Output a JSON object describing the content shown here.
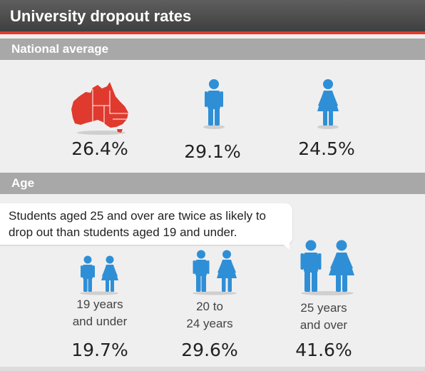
{
  "header": {
    "title": "University dropout rates"
  },
  "sections": {
    "national": {
      "title": "National average",
      "items": [
        {
          "icon": "australia-map-icon",
          "value": "26.4%"
        },
        {
          "icon": "male-figure-icon",
          "value": "29.1%"
        },
        {
          "icon": "female-figure-icon",
          "value": "24.5%"
        }
      ]
    },
    "age": {
      "title": "Age",
      "callout": "Students aged 25 and over are twice as likely to drop out than students aged 19 and under.",
      "groups": [
        {
          "line1": "19 years",
          "line2": "and under",
          "value": "19.7%"
        },
        {
          "line1": "20 to",
          "line2": "24 years",
          "value": "29.6%"
        },
        {
          "line1": "25 years",
          "line2": "and over",
          "value": "41.6%"
        }
      ]
    }
  },
  "colors": {
    "accent_red": "#e03a2e",
    "figure_blue": "#2f8fd6",
    "section_grey": "#a8a8a8"
  }
}
